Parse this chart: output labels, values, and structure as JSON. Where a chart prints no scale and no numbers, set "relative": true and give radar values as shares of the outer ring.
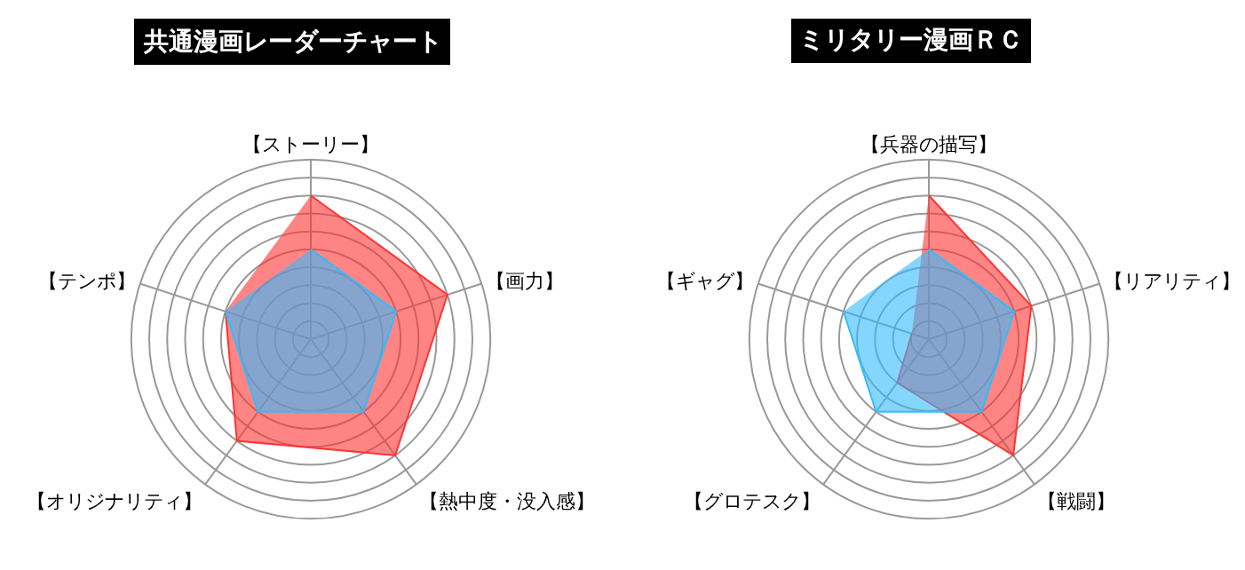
{
  "chart_data": [
    {
      "type": "radar",
      "title": "共通漫画レーダーチャート",
      "relative": true,
      "categories": [
        "【ストーリー】",
        "【画力】",
        "【熱中度・没入感】",
        "【オリジナリティ】",
        "【テンポ】"
      ],
      "series": [
        {
          "color": "#ff3333",
          "values": [
            0.8,
            0.8,
            0.8,
            0.7,
            0.5
          ]
        },
        {
          "color": "#33bbff",
          "values": [
            0.5,
            0.5,
            0.5,
            0.5,
            0.5
          ]
        }
      ]
    },
    {
      "type": "radar",
      "title": "ミリタリー漫画ＲＣ",
      "relative": true,
      "categories": [
        "【兵器の描写】",
        "【リアリティ】",
        "【戦闘】",
        "【グロテスク】",
        "【ギャグ】"
      ],
      "series": [
        {
          "color": "#ff3333",
          "values": [
            0.8,
            0.6,
            0.8,
            0.3,
            0.1
          ]
        },
        {
          "color": "#33bbff",
          "values": [
            0.5,
            0.5,
            0.5,
            0.5,
            0.5
          ]
        }
      ]
    }
  ]
}
